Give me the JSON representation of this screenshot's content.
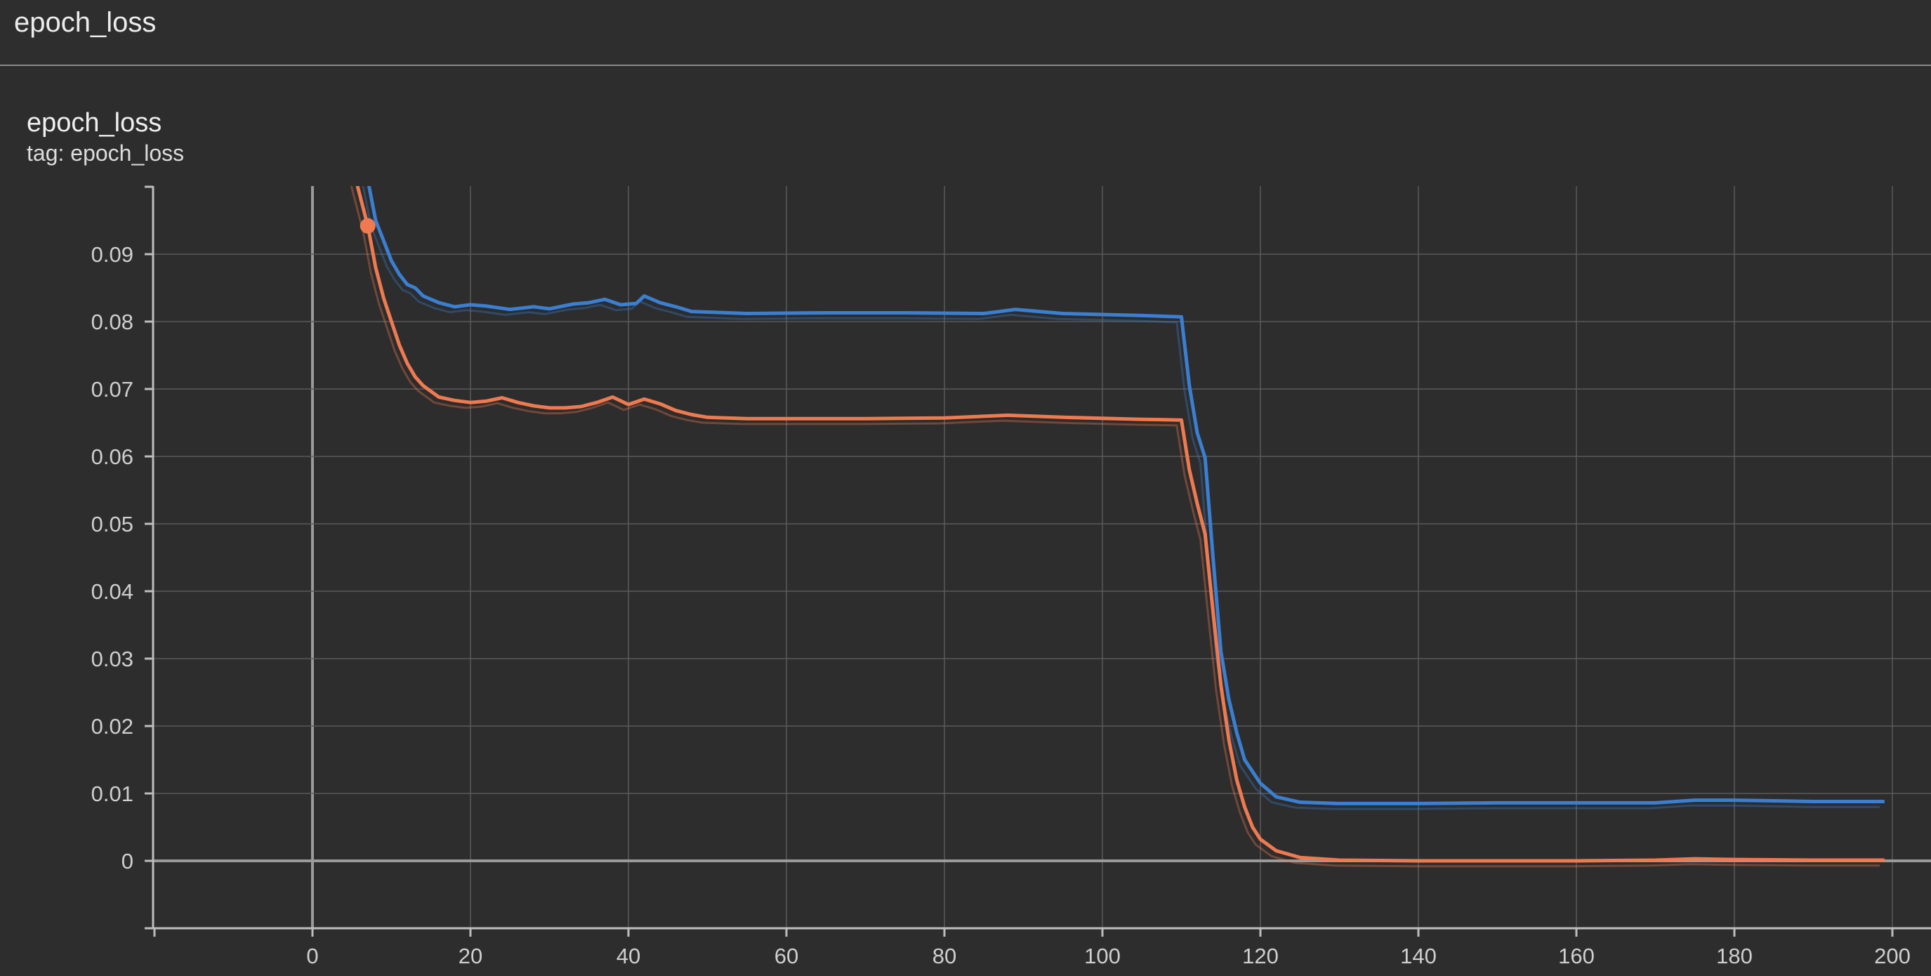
{
  "header": {
    "title": "epoch_loss"
  },
  "card": {
    "title": "epoch_loss",
    "tag": "tag: epoch_loss"
  },
  "colors": {
    "background": "#2d2d2d",
    "grid": "#5a5a5a",
    "series_blue": "#3a7fd1",
    "series_orange": "#f07a50"
  },
  "chart_data": {
    "type": "line",
    "xlim": [
      -20,
      200
    ],
    "ylim": [
      -0.01,
      0.1
    ],
    "x_ticks": [
      "0",
      "20",
      "40",
      "60",
      "80",
      "100",
      "120",
      "140",
      "160",
      "180",
      "200"
    ],
    "x_tick_values": [
      0,
      20,
      40,
      60,
      80,
      100,
      120,
      140,
      160,
      180,
      200
    ],
    "y_ticks": [
      "0.09",
      "0.08",
      "0.07",
      "0.06",
      "0.05",
      "0.04",
      "0.03",
      "0.02",
      "0.01",
      "0"
    ],
    "y_tick_values": [
      0.09,
      0.08,
      0.07,
      0.06,
      0.05,
      0.04,
      0.03,
      0.02,
      0.01,
      0
    ],
    "grid": true,
    "series": [
      {
        "color": "#3a7fd1",
        "x": [
          7,
          8,
          9,
          10,
          11,
          12,
          13,
          14,
          16,
          18,
          20,
          22,
          25,
          28,
          30,
          33,
          35,
          37,
          39,
          41,
          42,
          44,
          46,
          48,
          55,
          65,
          75,
          85,
          89,
          95,
          105,
          110,
          111,
          112,
          113,
          114,
          115,
          116,
          117,
          118,
          120,
          122,
          125,
          130,
          140,
          150,
          160,
          170,
          175,
          180,
          190,
          199
        ],
        "y": [
          0.101,
          0.095,
          0.092,
          0.089,
          0.087,
          0.0855,
          0.085,
          0.0838,
          0.0828,
          0.0822,
          0.0825,
          0.0823,
          0.0818,
          0.0822,
          0.0819,
          0.0826,
          0.0828,
          0.0833,
          0.0825,
          0.0827,
          0.0838,
          0.0828,
          0.0822,
          0.0815,
          0.0812,
          0.0813,
          0.0813,
          0.0812,
          0.0818,
          0.0812,
          0.0809,
          0.0807,
          0.0705,
          0.0635,
          0.0598,
          0.045,
          0.031,
          0.024,
          0.019,
          0.015,
          0.0115,
          0.0095,
          0.0087,
          0.0085,
          0.0085,
          0.0086,
          0.0086,
          0.0086,
          0.009,
          0.009,
          0.0088,
          0.0088
        ]
      },
      {
        "color": "#f07a50",
        "x": [
          5.5,
          7,
          8,
          9,
          10,
          11,
          12,
          13,
          14,
          16,
          18,
          20,
          22,
          24,
          26,
          28,
          30,
          32,
          34,
          36,
          38,
          40,
          42,
          44,
          46,
          48,
          50,
          55,
          60,
          70,
          80,
          88,
          95,
          105,
          110,
          111,
          112,
          113,
          114,
          115,
          116,
          117,
          118,
          119,
          120,
          122,
          125,
          130,
          140,
          150,
          160,
          170,
          175,
          180,
          190,
          199
        ],
        "y": [
          0.101,
          0.0942,
          0.088,
          0.0835,
          0.08,
          0.0765,
          0.0738,
          0.0718,
          0.0705,
          0.0688,
          0.0683,
          0.068,
          0.0682,
          0.0687,
          0.068,
          0.0675,
          0.0672,
          0.0672,
          0.0674,
          0.068,
          0.0688,
          0.0677,
          0.0685,
          0.0678,
          0.0668,
          0.0662,
          0.0658,
          0.0656,
          0.0656,
          0.0656,
          0.0657,
          0.0661,
          0.0658,
          0.0655,
          0.0654,
          0.058,
          0.053,
          0.0485,
          0.037,
          0.026,
          0.018,
          0.012,
          0.008,
          0.005,
          0.0032,
          0.0015,
          0.0005,
          0.0001,
          0.0,
          0.0,
          0.0,
          0.0001,
          0.0003,
          0.0002,
          0.0001,
          0.0001
        ]
      }
    ],
    "marker": {
      "x": 7,
      "y": 0.0942,
      "color": "#f07a50"
    }
  }
}
